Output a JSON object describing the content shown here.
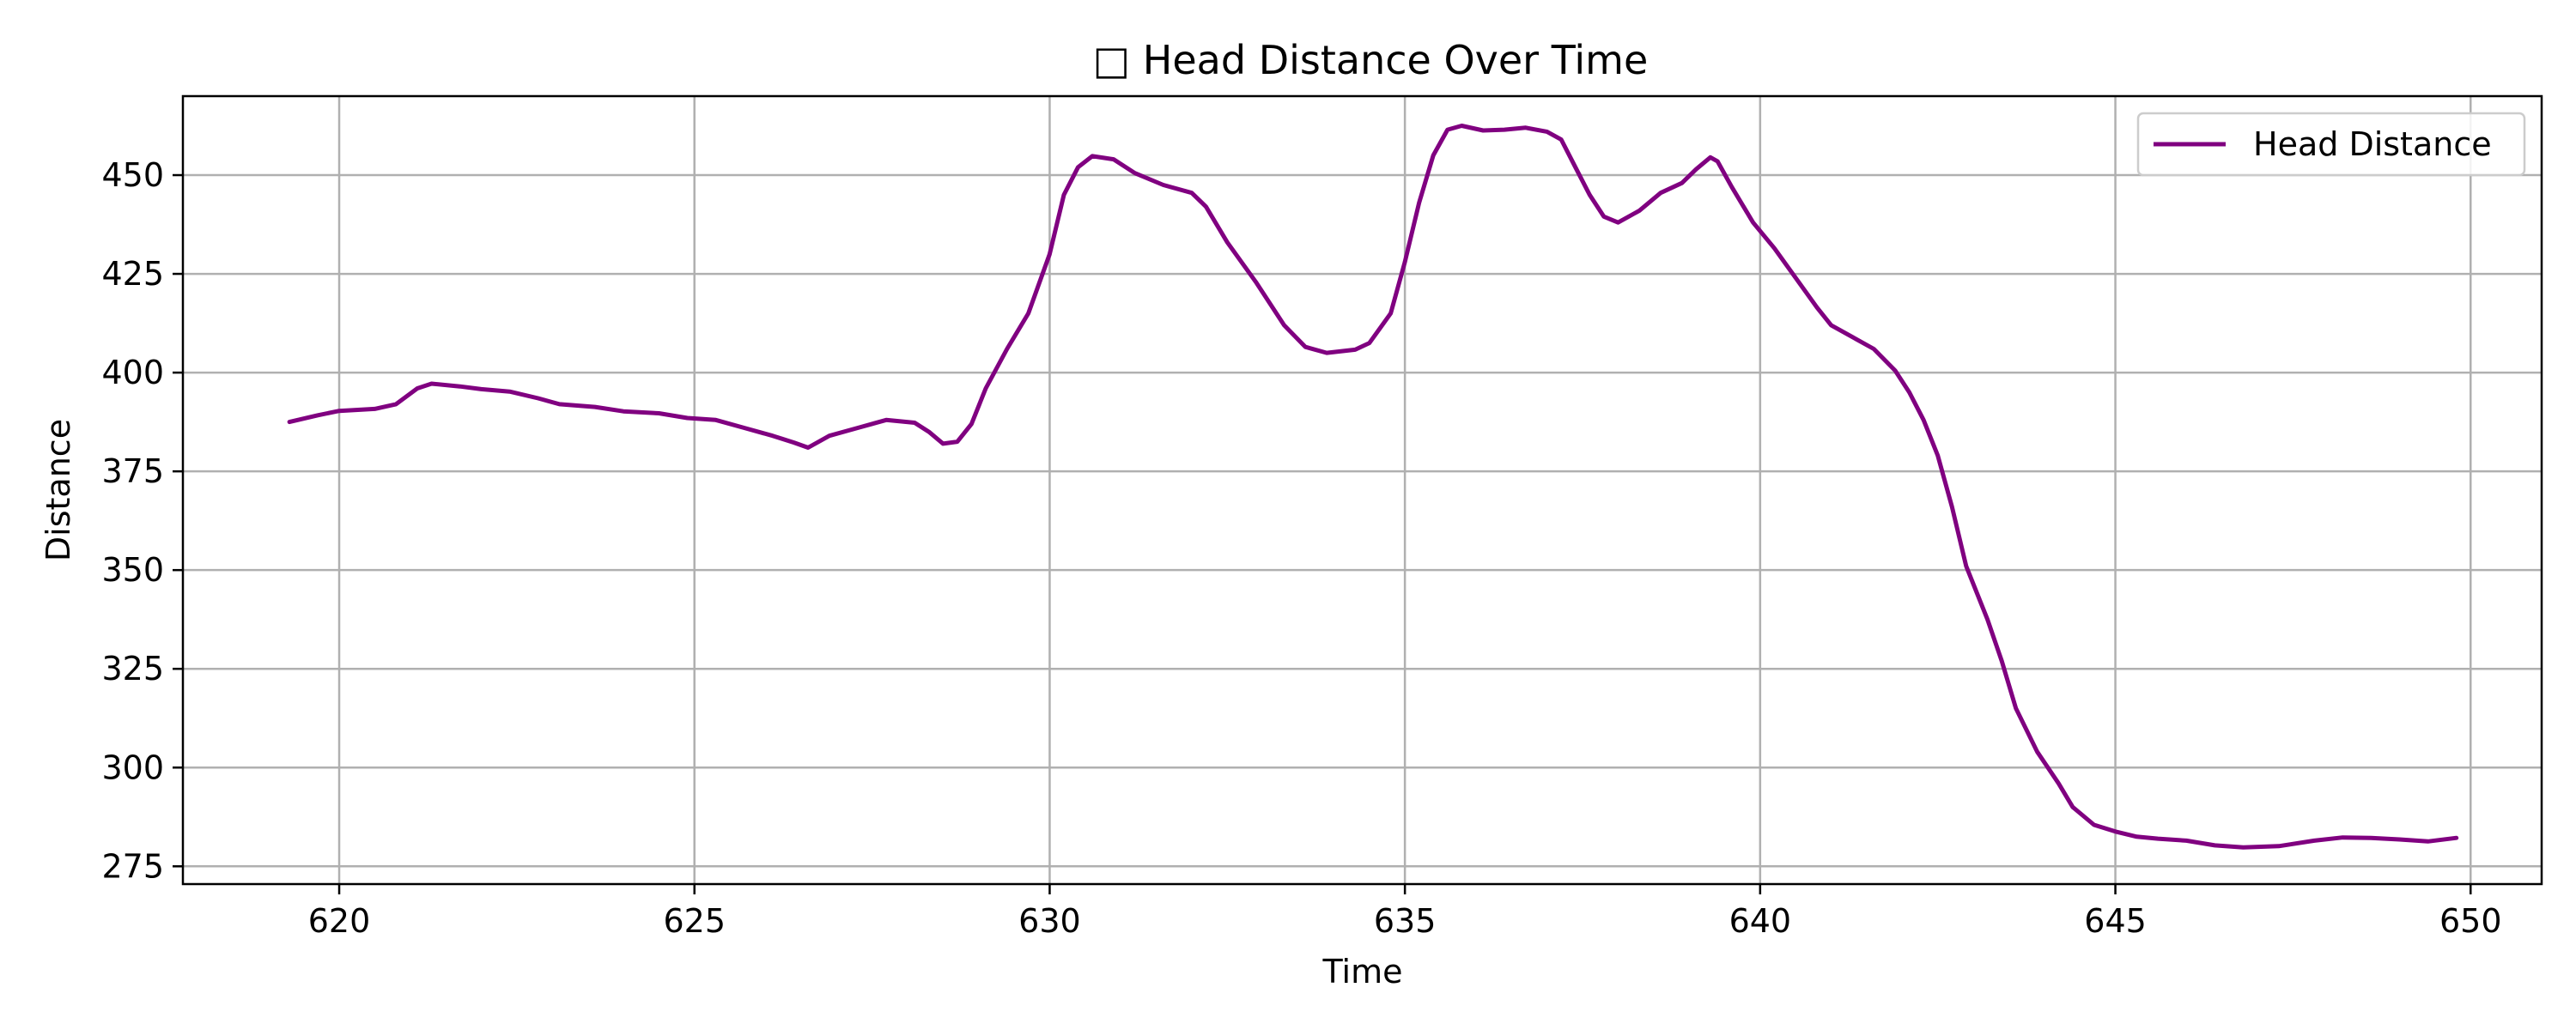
{
  "chart_data": {
    "type": "line",
    "title": "□ Head Distance Over Time",
    "xlabel": "Time",
    "ylabel": "Distance",
    "xlim": [
      617.8,
      651.0
    ],
    "ylim": [
      270.5,
      470.0
    ],
    "xticks": [
      620,
      625,
      630,
      635,
      640,
      645,
      650
    ],
    "yticks": [
      275,
      300,
      325,
      350,
      375,
      400,
      425,
      450
    ],
    "grid": true,
    "legend_position": "top-right",
    "series": [
      {
        "name": "Head Distance",
        "color": "#800080",
        "points": [
          [
            619.3,
            387.5
          ],
          [
            619.7,
            389.2
          ],
          [
            620.0,
            390.3
          ],
          [
            620.5,
            390.8
          ],
          [
            620.8,
            392.0
          ],
          [
            621.1,
            396.0
          ],
          [
            621.3,
            397.2
          ],
          [
            621.7,
            396.5
          ],
          [
            622.0,
            395.8
          ],
          [
            622.4,
            395.2
          ],
          [
            622.8,
            393.5
          ],
          [
            623.1,
            392.0
          ],
          [
            623.6,
            391.3
          ],
          [
            624.0,
            390.2
          ],
          [
            624.5,
            389.7
          ],
          [
            624.9,
            388.5
          ],
          [
            625.3,
            388.0
          ],
          [
            625.7,
            386.0
          ],
          [
            626.1,
            384.0
          ],
          [
            626.4,
            382.3
          ],
          [
            626.6,
            381.0
          ],
          [
            626.9,
            384.0
          ],
          [
            627.3,
            386.0
          ],
          [
            627.7,
            388.0
          ],
          [
            628.1,
            387.3
          ],
          [
            628.3,
            385.0
          ],
          [
            628.5,
            382.0
          ],
          [
            628.7,
            382.5
          ],
          [
            628.9,
            387.0
          ],
          [
            629.1,
            396.0
          ],
          [
            629.4,
            406.0
          ],
          [
            629.7,
            415.0
          ],
          [
            630.0,
            430.0
          ],
          [
            630.2,
            445.0
          ],
          [
            630.4,
            452.0
          ],
          [
            630.6,
            454.8
          ],
          [
            630.9,
            454.0
          ],
          [
            631.2,
            450.5
          ],
          [
            631.6,
            447.5
          ],
          [
            632.0,
            445.5
          ],
          [
            632.2,
            442.0
          ],
          [
            632.5,
            433.0
          ],
          [
            632.9,
            423.0
          ],
          [
            633.3,
            412.0
          ],
          [
            633.6,
            406.5
          ],
          [
            633.9,
            405.0
          ],
          [
            634.3,
            405.8
          ],
          [
            634.5,
            407.5
          ],
          [
            634.8,
            415.0
          ],
          [
            635.0,
            428.0
          ],
          [
            635.2,
            443.0
          ],
          [
            635.4,
            455.0
          ],
          [
            635.6,
            461.5
          ],
          [
            635.8,
            462.5
          ],
          [
            636.1,
            461.3
          ],
          [
            636.4,
            461.5
          ],
          [
            636.7,
            462.0
          ],
          [
            637.0,
            461.0
          ],
          [
            637.2,
            459.0
          ],
          [
            637.4,
            452.0
          ],
          [
            637.6,
            445.0
          ],
          [
            637.8,
            439.5
          ],
          [
            638.0,
            438.0
          ],
          [
            638.3,
            441.0
          ],
          [
            638.6,
            445.5
          ],
          [
            638.9,
            448.0
          ],
          [
            639.1,
            451.5
          ],
          [
            639.3,
            454.5
          ],
          [
            639.4,
            453.5
          ],
          [
            639.6,
            447.0
          ],
          [
            639.9,
            438.0
          ],
          [
            640.2,
            431.5
          ],
          [
            640.5,
            424.0
          ],
          [
            640.8,
            416.5
          ],
          [
            641.0,
            412.0
          ],
          [
            641.3,
            409.0
          ],
          [
            641.6,
            406.0
          ],
          [
            641.9,
            400.5
          ],
          [
            642.1,
            395.0
          ],
          [
            642.3,
            388.0
          ],
          [
            642.5,
            379.0
          ],
          [
            642.7,
            366.0
          ],
          [
            642.9,
            351.0
          ],
          [
            643.2,
            337.5
          ],
          [
            643.4,
            327.0
          ],
          [
            643.6,
            315.0
          ],
          [
            643.9,
            304.0
          ],
          [
            644.2,
            296.0
          ],
          [
            644.4,
            290.0
          ],
          [
            644.7,
            285.5
          ],
          [
            645.0,
            283.8
          ],
          [
            645.3,
            282.5
          ],
          [
            645.6,
            282.0
          ],
          [
            646.0,
            281.5
          ],
          [
            646.4,
            280.3
          ],
          [
            646.8,
            279.8
          ],
          [
            647.3,
            280.1
          ],
          [
            647.8,
            281.5
          ],
          [
            648.2,
            282.3
          ],
          [
            648.6,
            282.2
          ],
          [
            649.0,
            281.8
          ],
          [
            649.4,
            281.3
          ],
          [
            649.8,
            282.2
          ]
        ]
      }
    ]
  }
}
